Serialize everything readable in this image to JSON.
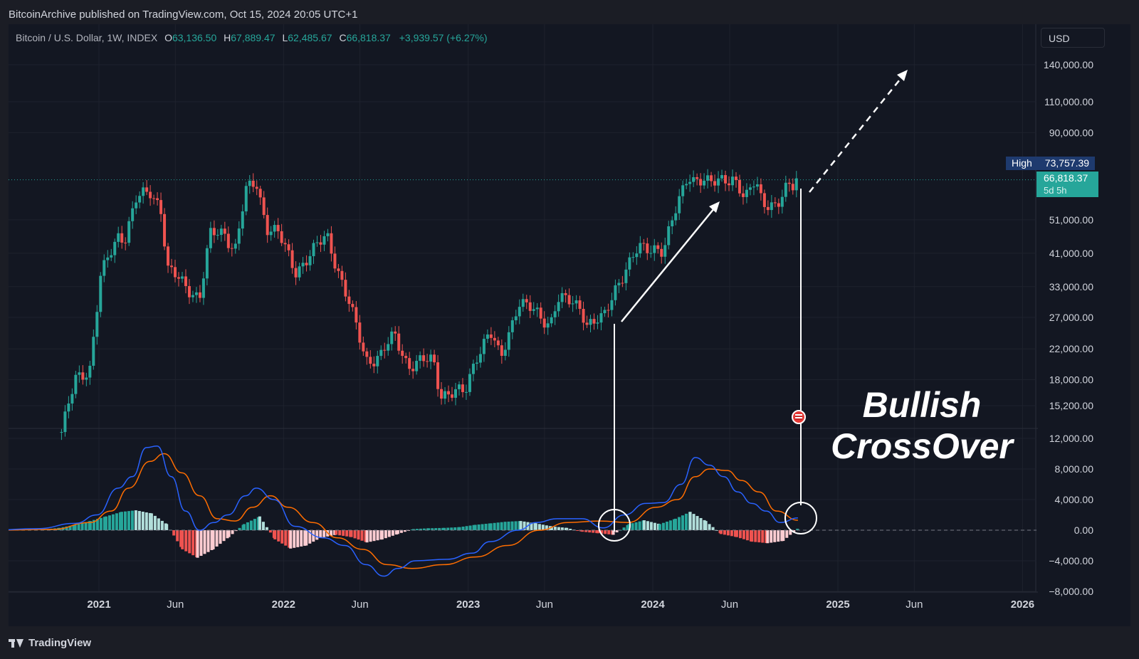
{
  "header": {
    "publisher": "BitcoinArchive published on TradingView.com, Oct 15, 2024 20:05 UTC+1"
  },
  "symbol": {
    "name": "Bitcoin / U.S. Dollar, 1W, INDEX",
    "open_label": "O",
    "open": "63,136.50",
    "high_label": "H",
    "high": "67,889.47",
    "low_label": "L",
    "low": "62,485.67",
    "close_label": "C",
    "close": "66,818.37",
    "change": "+3,939.57 (+6.27%)"
  },
  "currency_button": "USD",
  "price_badges": {
    "high_label": "High",
    "high_value": "73,757.39",
    "last_value": "66,818.37",
    "countdown": "5d 5h"
  },
  "annotation": {
    "line1": "Bullish",
    "line2": "CrossOver"
  },
  "footer": {
    "brand": "TradingView"
  },
  "colors": {
    "up": "#26a69a",
    "down": "#ef5350",
    "macd": "#2962ff",
    "signal": "#ff6d00",
    "hist_up": "#26a69a",
    "hist_up_light": "#b2dfdb",
    "hist_down": "#ef5350",
    "hist_down_light": "#ffcdd2",
    "background": "#131722",
    "grid": "#1e222d"
  },
  "chart_data": [
    {
      "type": "candlestick",
      "title": "",
      "scale": "log",
      "price_axis_ticks": [
        140000,
        110000,
        90000,
        51000,
        41000,
        33000,
        27000,
        22000,
        18000,
        15200
      ],
      "price_axis_labels": [
        "140,000.00",
        "110,000.00",
        "90,000.00",
        "51,000.00",
        "41,000.00",
        "33,000.00",
        "27,000.00",
        "22,000.00",
        "18,000.00",
        "15,200.00"
      ],
      "time_axis_labels": [
        {
          "label": "2021",
          "date": "2021-01-01",
          "major": true
        },
        {
          "label": "Jun",
          "date": "2021-06-01",
          "major": false
        },
        {
          "label": "2022",
          "date": "2022-01-01",
          "major": true
        },
        {
          "label": "Jun",
          "date": "2022-06-01",
          "major": false
        },
        {
          "label": "2023",
          "date": "2023-01-01",
          "major": true
        },
        {
          "label": "Jun",
          "date": "2023-06-01",
          "major": false
        },
        {
          "label": "2024",
          "date": "2024-01-01",
          "major": true
        },
        {
          "label": "Jun",
          "date": "2024-06-01",
          "major": false
        },
        {
          "label": "2025",
          "date": "2025-01-01",
          "major": true
        },
        {
          "label": "Jun",
          "date": "2025-06-01",
          "major": false
        },
        {
          "label": "2026",
          "date": "2026-01-01",
          "major": true
        }
      ],
      "x_range": [
        "2020-06-01",
        "2026-01-01"
      ],
      "y_range": [
        13000,
        170000
      ],
      "price_path": [
        [
          "2020-10-19",
          12800
        ],
        [
          "2020-11-16",
          18000
        ],
        [
          "2020-12-14",
          19500
        ],
        [
          "2021-01-04",
          35000
        ],
        [
          "2021-02-08",
          46000
        ],
        [
          "2021-02-22",
          46000
        ],
        [
          "2021-03-15",
          58000
        ],
        [
          "2021-04-12",
          61000
        ],
        [
          "2021-05-03",
          56000
        ],
        [
          "2021-05-17",
          37000
        ],
        [
          "2021-06-21",
          33000
        ],
        [
          "2021-07-19",
          31000
        ],
        [
          "2021-08-09",
          46000
        ],
        [
          "2021-09-06",
          47000
        ],
        [
          "2021-09-27",
          42000
        ],
        [
          "2021-10-18",
          61000
        ],
        [
          "2021-11-08",
          65000
        ],
        [
          "2021-11-29",
          49000
        ],
        [
          "2021-12-20",
          47000
        ],
        [
          "2022-01-24",
          36500
        ],
        [
          "2022-03-28",
          46000
        ],
        [
          "2022-05-09",
          30000
        ],
        [
          "2022-06-13",
          20500
        ],
        [
          "2022-07-11",
          21000
        ],
        [
          "2022-08-08",
          24000
        ],
        [
          "2022-09-05",
          19800
        ],
        [
          "2022-10-24",
          20500
        ],
        [
          "2022-11-07",
          16500
        ],
        [
          "2022-12-26",
          16500
        ],
        [
          "2023-01-16",
          21000
        ],
        [
          "2023-02-13",
          24500
        ],
        [
          "2023-03-06",
          20500
        ],
        [
          "2023-04-10",
          30000
        ],
        [
          "2023-06-12",
          26000
        ],
        [
          "2023-06-26",
          30500
        ],
        [
          "2023-08-14",
          29000
        ],
        [
          "2023-08-21",
          26000
        ],
        [
          "2023-09-25",
          26500
        ],
        [
          "2023-10-23",
          34000
        ],
        [
          "2023-12-04",
          42000
        ],
        [
          "2024-01-08",
          43000
        ],
        [
          "2024-01-22",
          41500
        ],
        [
          "2024-02-12",
          52000
        ],
        [
          "2024-03-11",
          70000
        ],
        [
          "2024-03-18",
          67000
        ],
        [
          "2024-04-22",
          64000
        ],
        [
          "2024-05-20",
          68000
        ],
        [
          "2024-06-10",
          66000
        ],
        [
          "2024-07-01",
          57000
        ],
        [
          "2024-07-22",
          68000
        ],
        [
          "2024-08-05",
          58000
        ],
        [
          "2024-09-02",
          54000
        ],
        [
          "2024-09-23",
          64000
        ],
        [
          "2024-10-14",
          66818
        ]
      ],
      "last_price": 66818.37,
      "high_price": 73757.39
    },
    {
      "type": "macd",
      "title": "",
      "y_axis_ticks": [
        12000,
        8000,
        4000,
        0,
        -4000,
        -8000
      ],
      "y_axis_labels": [
        "12,000.00",
        "8,000.00",
        "4,000.00",
        "0.00",
        "−4,000.00",
        "−8,000.00"
      ],
      "y_range": [
        -8000,
        12000
      ],
      "macd_line": [
        [
          "2020-06-01",
          0
        ],
        [
          "2020-09-01",
          200
        ],
        [
          "2020-11-16",
          900
        ],
        [
          "2020-12-28",
          2000
        ],
        [
          "2021-02-08",
          5500
        ],
        [
          "2021-03-08",
          7000
        ],
        [
          "2021-04-05",
          10800
        ],
        [
          "2021-04-26",
          11000
        ],
        [
          "2021-05-24",
          7000
        ],
        [
          "2021-06-21",
          2500
        ],
        [
          "2021-07-19",
          0
        ],
        [
          "2021-08-16",
          1000
        ],
        [
          "2021-09-13",
          2000
        ],
        [
          "2021-10-18",
          4500
        ],
        [
          "2021-11-08",
          5500
        ],
        [
          "2021-12-13",
          4000
        ],
        [
          "2022-01-24",
          500
        ],
        [
          "2022-03-21",
          -1000
        ],
        [
          "2022-05-02",
          -2000
        ],
        [
          "2022-06-13",
          -4500
        ],
        [
          "2022-07-18",
          -6000
        ],
        [
          "2022-08-15",
          -5000
        ],
        [
          "2022-09-19",
          -4000
        ],
        [
          "2022-11-21",
          -3800
        ],
        [
          "2023-01-09",
          -3000
        ],
        [
          "2023-02-13",
          -1500
        ],
        [
          "2023-04-10",
          0
        ],
        [
          "2023-05-15",
          1000
        ],
        [
          "2023-06-26",
          1500
        ],
        [
          "2023-08-14",
          1500
        ],
        [
          "2023-09-25",
          300
        ],
        [
          "2023-11-06",
          2000
        ],
        [
          "2023-12-18",
          3500
        ],
        [
          "2024-01-22",
          3600
        ],
        [
          "2024-02-26",
          6000
        ],
        [
          "2024-03-25",
          9500
        ],
        [
          "2024-04-22",
          8500
        ],
        [
          "2024-05-20",
          7000
        ],
        [
          "2024-06-17",
          5000
        ],
        [
          "2024-07-15",
          3500
        ],
        [
          "2024-08-12",
          2500
        ],
        [
          "2024-09-09",
          1000
        ],
        [
          "2024-10-14",
          1600
        ]
      ],
      "signal_line": [
        [
          "2020-06-01",
          0
        ],
        [
          "2020-10-01",
          100
        ],
        [
          "2020-12-14",
          1000
        ],
        [
          "2021-01-25",
          2500
        ],
        [
          "2021-03-01",
          5500
        ],
        [
          "2021-04-12",
          9000
        ],
        [
          "2021-05-10",
          10000
        ],
        [
          "2021-06-14",
          7500
        ],
        [
          "2021-07-19",
          4500
        ],
        [
          "2021-08-23",
          1500
        ],
        [
          "2021-09-27",
          1200
        ],
        [
          "2021-11-01",
          3000
        ],
        [
          "2021-12-06",
          4500
        ],
        [
          "2022-01-10",
          3000
        ],
        [
          "2022-02-28",
          1000
        ],
        [
          "2022-04-18",
          -1000
        ],
        [
          "2022-06-06",
          -2500
        ],
        [
          "2022-07-25",
          -4500
        ],
        [
          "2022-09-12",
          -5000
        ],
        [
          "2022-11-14",
          -4500
        ],
        [
          "2023-01-16",
          -3500
        ],
        [
          "2023-03-20",
          -2000
        ],
        [
          "2023-05-22",
          0
        ],
        [
          "2023-07-17",
          1000
        ],
        [
          "2023-09-18",
          1200
        ],
        [
          "2023-11-13",
          1000
        ],
        [
          "2024-01-08",
          3000
        ],
        [
          "2024-02-19",
          4000
        ],
        [
          "2024-03-25",
          7000
        ],
        [
          "2024-04-22",
          8000
        ],
        [
          "2024-05-27",
          7800
        ],
        [
          "2024-06-24",
          6500
        ],
        [
          "2024-07-29",
          5000
        ],
        [
          "2024-09-02",
          2500
        ],
        [
          "2024-10-14",
          1300
        ]
      ],
      "histogram": [
        [
          "2020-09",
          100
        ],
        [
          "2020-10",
          300
        ],
        [
          "2020-11",
          700
        ],
        [
          "2020-12",
          1200
        ],
        [
          "2021-01",
          1800
        ],
        [
          "2021-02",
          2400
        ],
        [
          "2021-03",
          2600
        ],
        [
          "2021-04",
          2200
        ],
        [
          "2021-05",
          800
        ],
        [
          "2021-06",
          -2500
        ],
        [
          "2021-07",
          -3600
        ],
        [
          "2021-08",
          -2500
        ],
        [
          "2021-09",
          -900
        ],
        [
          "2021-10",
          800
        ],
        [
          "2021-11",
          1800
        ],
        [
          "2021-12",
          -1200
        ],
        [
          "2022-01",
          -2400
        ],
        [
          "2022-02",
          -2000
        ],
        [
          "2022-03",
          -1000
        ],
        [
          "2022-04",
          -600
        ],
        [
          "2022-05",
          -900
        ],
        [
          "2022-06",
          -1600
        ],
        [
          "2022-07",
          -1200
        ],
        [
          "2022-08",
          -500
        ],
        [
          "2022-09",
          150
        ],
        [
          "2022-10",
          250
        ],
        [
          "2022-11",
          300
        ],
        [
          "2022-12",
          400
        ],
        [
          "2023-01",
          700
        ],
        [
          "2023-02",
          900
        ],
        [
          "2023-03",
          1100
        ],
        [
          "2023-04",
          1200
        ],
        [
          "2023-05",
          900
        ],
        [
          "2023-06",
          500
        ],
        [
          "2023-07",
          300
        ],
        [
          "2023-08",
          -200
        ],
        [
          "2023-09",
          -400
        ],
        [
          "2023-10",
          -600
        ],
        [
          "2023-11",
          800
        ],
        [
          "2023-12",
          1300
        ],
        [
          "2024-01",
          800
        ],
        [
          "2024-02",
          1500
        ],
        [
          "2024-03",
          2400
        ],
        [
          "2024-04",
          1200
        ],
        [
          "2024-05",
          -500
        ],
        [
          "2024-06",
          -900
        ],
        [
          "2024-07",
          -1500
        ],
        [
          "2024-08",
          -1700
        ],
        [
          "2024-09",
          -1400
        ],
        [
          "2024-10",
          300
        ]
      ]
    }
  ]
}
